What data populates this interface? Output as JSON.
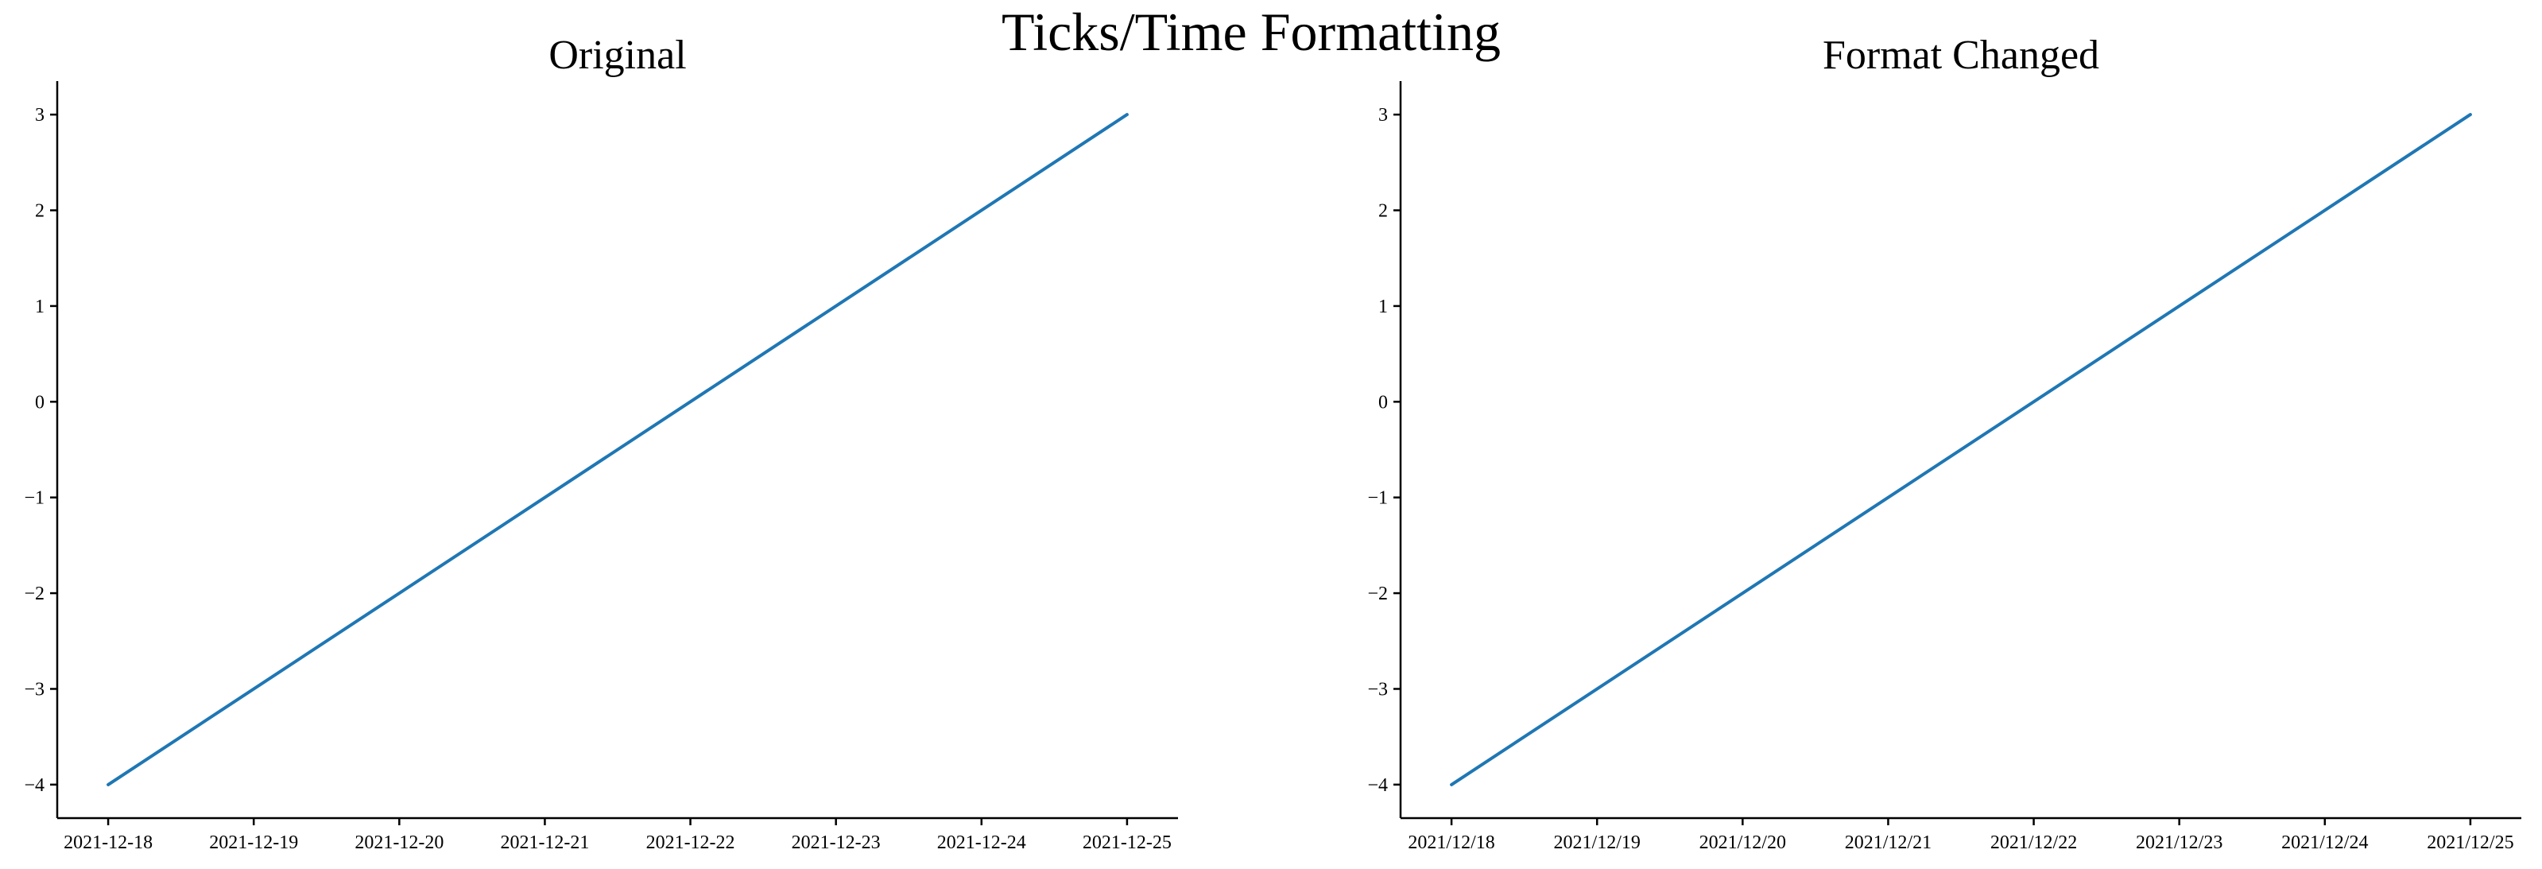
{
  "figure": {
    "suptitle": "Ticks/Time Formatting"
  },
  "chart_data": [
    {
      "type": "line",
      "title": "Original",
      "xlabel": "",
      "ylabel": "",
      "x": [
        "2021-12-18",
        "2021-12-25"
      ],
      "series": [
        {
          "values": [
            -4,
            3
          ],
          "color": "#1f77b4"
        }
      ],
      "xticks": [
        "2021-12-18",
        "2021-12-19",
        "2021-12-20",
        "2021-12-21",
        "2021-12-22",
        "2021-12-23",
        "2021-12-24",
        "2021-12-25"
      ],
      "xtick_labels": [
        "2021-12-18",
        "2021-12-19",
        "2021-12-20",
        "2021-12-21",
        "2021-12-22",
        "2021-12-23",
        "2021-12-24",
        "2021-12-25"
      ],
      "yticks": [
        3,
        2,
        1,
        0,
        -1,
        -2,
        -3,
        -4
      ],
      "ytick_labels": [
        "3",
        "2",
        "1",
        "0",
        "−1",
        "−2",
        "−3",
        "−4"
      ],
      "ylim": [
        -4.35,
        3.35
      ],
      "grid": false
    },
    {
      "type": "line",
      "title": "Format Changed",
      "xlabel": "",
      "ylabel": "",
      "x": [
        "2021-12-18",
        "2021-12-25"
      ],
      "series": [
        {
          "values": [
            -4,
            3
          ],
          "color": "#1f77b4"
        }
      ],
      "xticks": [
        "2021-12-18",
        "2021-12-19",
        "2021-12-20",
        "2021-12-21",
        "2021-12-22",
        "2021-12-23",
        "2021-12-24",
        "2021-12-25"
      ],
      "xtick_labels": [
        "2021/12/18",
        "2021/12/19",
        "2021/12/20",
        "2021/12/21",
        "2021/12/22",
        "2021/12/23",
        "2021/12/24",
        "2021/12/25"
      ],
      "yticks": [
        3,
        2,
        1,
        0,
        -1,
        -2,
        -3,
        -4
      ],
      "ytick_labels": [
        "3",
        "2",
        "1",
        "0",
        "−1",
        "−2",
        "−3",
        "−4"
      ],
      "ylim": [
        -4.35,
        3.35
      ],
      "grid": false
    }
  ]
}
